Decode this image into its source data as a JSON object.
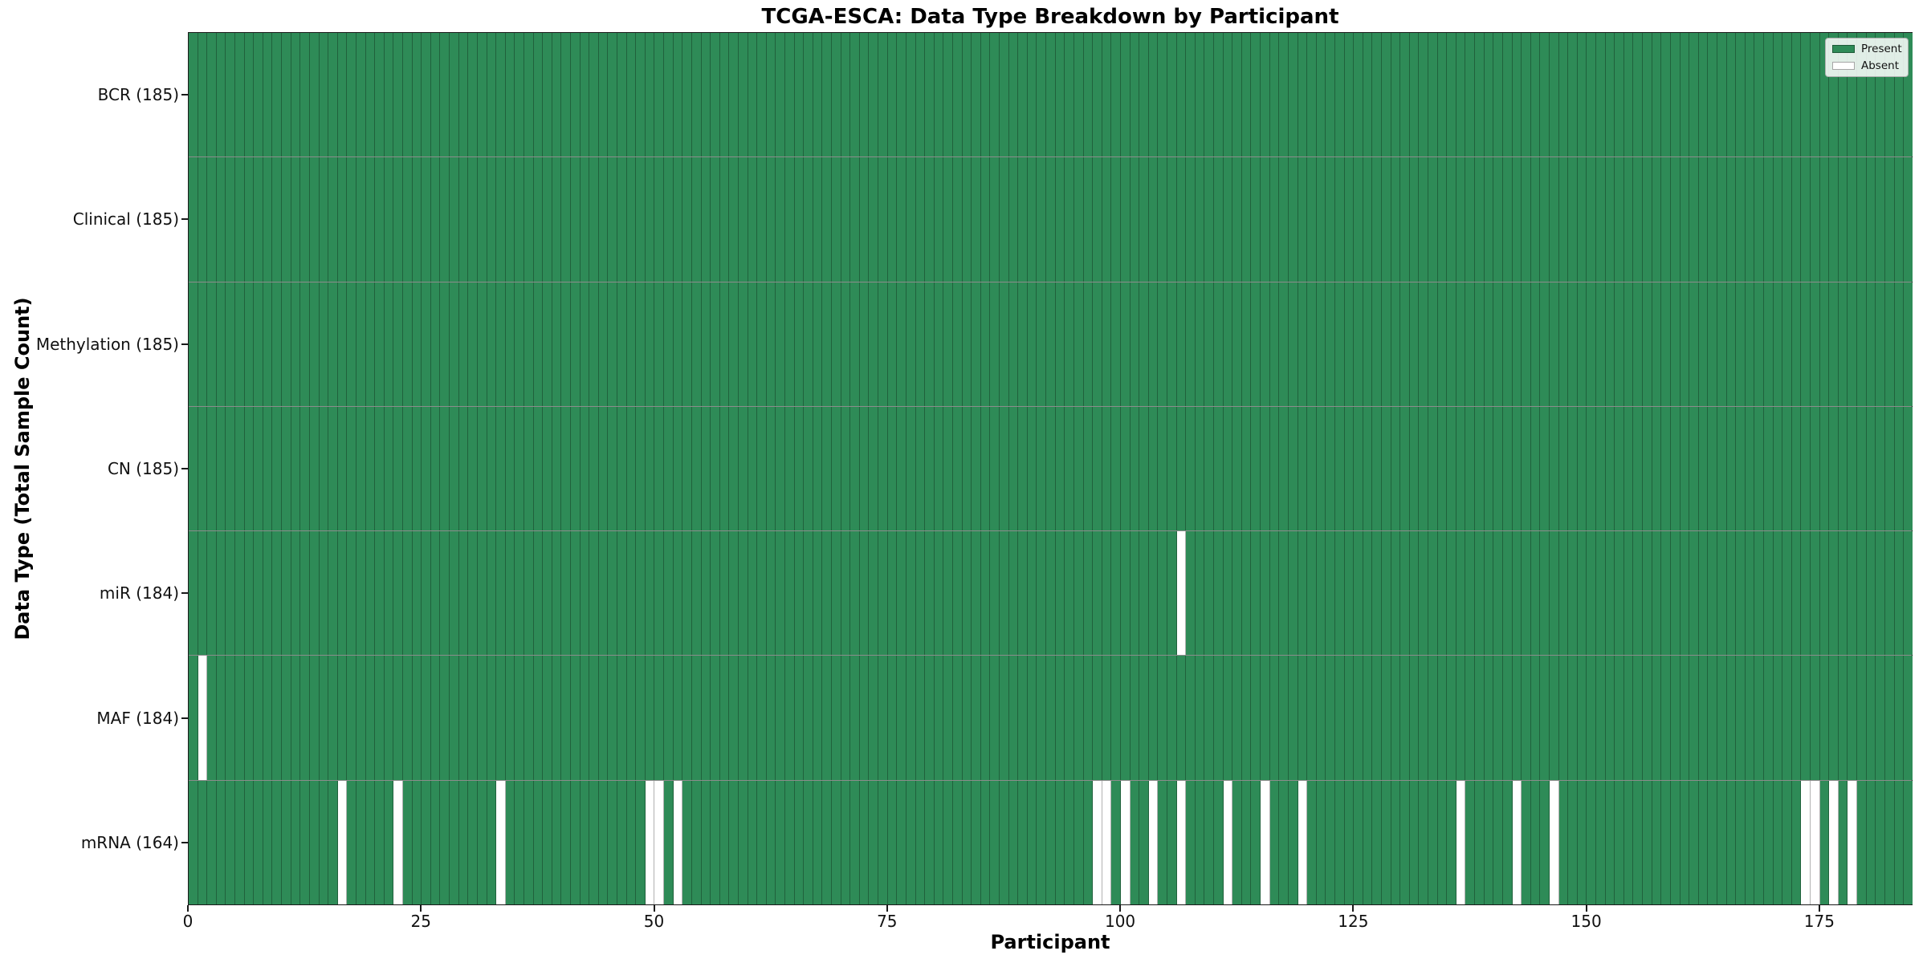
{
  "chart_data": {
    "type": "heatmap",
    "title": "TCGA-ESCA: Data Type Breakdown by Participant",
    "xlabel": "Participant",
    "ylabel": "Data Type (Total Sample Count)",
    "n_participants": 185,
    "xlim": [
      0,
      185
    ],
    "x_ticks": [
      0,
      25,
      50,
      75,
      100,
      125,
      150,
      175
    ],
    "grid": "cell-edges",
    "legend": {
      "position": "upper-right",
      "entries": [
        {
          "label": "Present",
          "color": "#2E8B57"
        },
        {
          "label": "Absent",
          "color": "#FFFFFF"
        }
      ]
    },
    "colors": {
      "present": "#2E8B57",
      "absent": "#FFFFFF",
      "cell_edge": "rgba(0,0,0,0.30)",
      "spine": "#1a1a1a"
    },
    "rows": [
      {
        "label": "BCR (185)",
        "data_type": "BCR",
        "present_count": 185,
        "absent_participants": []
      },
      {
        "label": "Clinical (185)",
        "data_type": "Clinical",
        "present_count": 185,
        "absent_participants": []
      },
      {
        "label": "Methylation (185)",
        "data_type": "Methylation",
        "present_count": 185,
        "absent_participants": []
      },
      {
        "label": "CN (185)",
        "data_type": "CN",
        "present_count": 185,
        "absent_participants": []
      },
      {
        "label": "miR (184)",
        "data_type": "miR",
        "present_count": 184,
        "absent_participants": [
          106
        ]
      },
      {
        "label": "MAF (184)",
        "data_type": "MAF",
        "present_count": 184,
        "absent_participants": [
          1
        ]
      },
      {
        "label": "mRNA (164)",
        "data_type": "mRNA",
        "present_count": 164,
        "absent_participants": [
          16,
          22,
          33,
          49,
          50,
          52,
          97,
          98,
          100,
          103,
          106,
          111,
          115,
          119,
          136,
          142,
          146,
          173,
          174,
          176,
          178
        ]
      }
    ]
  }
}
